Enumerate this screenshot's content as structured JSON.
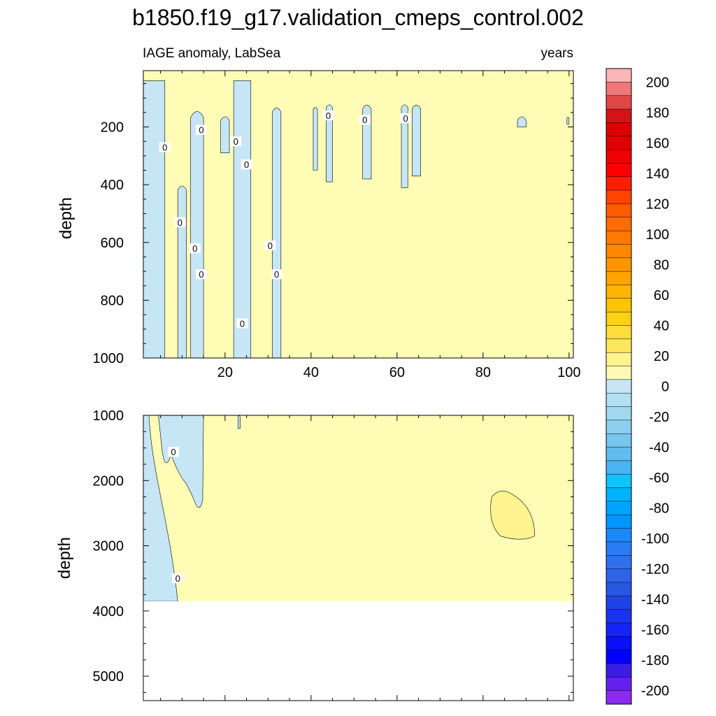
{
  "title": "b1850.f19_g17.validation_cmeps_control.002",
  "left_string": "IAGE anomaly, LabSea",
  "right_string": "years",
  "chart_data": [
    {
      "type": "heatmap",
      "panel": "upper",
      "ylabel": "depth",
      "xlim": [
        1,
        101
      ],
      "ylim": [
        1000,
        5
      ],
      "y_reversed": true,
      "xticks": [
        20,
        40,
        60,
        80,
        100
      ],
      "yticks": [
        200,
        400,
        600,
        800,
        1000
      ],
      "field_summary": "anomaly between -10 and 10 almost everywhere; negative (-10 to 0) columns near years 1-6, 9-15, 20-26, 31-33 and thin bands at 41, 44, 53, 62, 65, 89, 100; positive (0 to 10) elsewhere",
      "negative_regions": [
        {
          "years": [
            1,
            6
          ],
          "depth": [
            40,
            1000
          ]
        },
        {
          "years": [
            9,
            11
          ],
          "depth": [
            400,
            1000
          ]
        },
        {
          "years": [
            12,
            15
          ],
          "depth": [
            140,
            1000
          ]
        },
        {
          "years": [
            19,
            21
          ],
          "depth": [
            160,
            290
          ]
        },
        {
          "years": [
            22,
            26
          ],
          "depth": [
            40,
            1000
          ]
        },
        {
          "years": [
            31,
            33
          ],
          "depth": [
            130,
            1000
          ]
        },
        {
          "years": [
            40.5,
            41.5
          ],
          "depth": [
            130,
            350
          ]
        },
        {
          "years": [
            43.5,
            45
          ],
          "depth": [
            120,
            390
          ]
        },
        {
          "years": [
            52,
            54
          ],
          "depth": [
            120,
            380
          ]
        },
        {
          "years": [
            61,
            62.5
          ],
          "depth": [
            120,
            410
          ]
        },
        {
          "years": [
            63.5,
            65.5
          ],
          "depth": [
            120,
            370
          ]
        },
        {
          "years": [
            88,
            90
          ],
          "depth": [
            160,
            200
          ]
        },
        {
          "years": [
            99.5,
            100
          ],
          "depth": [
            165,
            190
          ]
        }
      ],
      "contour_labels": [
        "0",
        "0",
        "0",
        "0",
        "0",
        "0",
        "0",
        "0",
        "0",
        "0",
        "0",
        "0",
        "0",
        "0",
        "0"
      ]
    },
    {
      "type": "heatmap",
      "panel": "lower",
      "ylabel": "depth",
      "xlim": [
        1,
        101
      ],
      "ylim": [
        1000,
        5375
      ],
      "y_reversed": true,
      "yticks": [
        1000,
        2000,
        3000,
        4000,
        5000
      ],
      "ocean_floor_depth": 3850,
      "field_summary": "negative (-10 to 0) wedge in first ~10 years thinning with depth; positive elsewhere; stronger positive (10 to 20) patch near years 81-92 between 2100 and 2950 m",
      "negative_regions": [
        {
          "years": [
            1,
            9
          ],
          "depth": [
            1000,
            3850
          ]
        },
        {
          "years": [
            9,
            15
          ],
          "depth": [
            1000,
            2450
          ]
        },
        {
          "years": [
            23,
            23.5
          ],
          "depth": [
            1000,
            1200
          ]
        }
      ],
      "positive_patch": {
        "years": [
          81,
          92
        ],
        "depth": [
          2100,
          2950
        ],
        "range": [
          10,
          20
        ]
      },
      "contour_labels": [
        "0",
        "0"
      ]
    }
  ],
  "colorbar": {
    "labels": [
      "200",
      "180",
      "160",
      "140",
      "120",
      "100",
      "80",
      "60",
      "40",
      "20",
      "0",
      "-20",
      "-40",
      "-60",
      "-80",
      "-100",
      "-120",
      "-140",
      "-160",
      "-180",
      "-200"
    ],
    "colors": [
      "#fbb6b6",
      "#f07878",
      "#e04848",
      "#d41414",
      "#de0000",
      "#e00000",
      "#f00000",
      "#ff0000",
      "#ff1e00",
      "#ff4400",
      "#ff5a00",
      "#ff6c00",
      "#ff7800",
      "#ff8800",
      "#ff9600",
      "#ffa400",
      "#ffb400",
      "#ffc400",
      "#ffd018",
      "#ffdc3a",
      "#ffe860",
      "#fff490",
      "#fffab6",
      "#c6e6f6",
      "#b2dff2",
      "#a0d8ef",
      "#8ccfee",
      "#76c6ee",
      "#62bcf0",
      "#48b4f2",
      "#0ec4ff",
      "#00b2ff",
      "#00a4ff",
      "#0096ff",
      "#1a88ff",
      "#2a7cf4",
      "#3070ee",
      "#2e64e8",
      "#2858e2",
      "#1e44e8",
      "#1a34ee",
      "#1424f4",
      "#0a10fa",
      "#0000ff",
      "#3a1ee6",
      "#6420f0",
      "#8a2bf2"
    ]
  }
}
